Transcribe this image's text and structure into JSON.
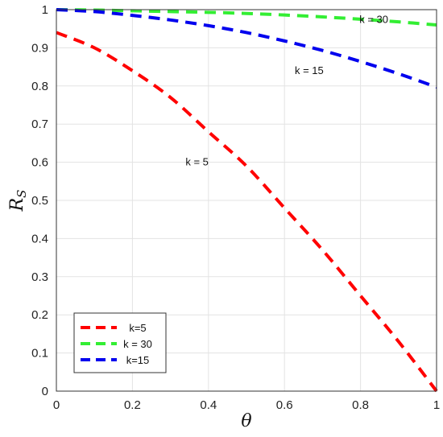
{
  "chart_data": {
    "type": "line",
    "xlabel": "θ",
    "ylabel_main": "R",
    "ylabel_sub": "S",
    "xlim": [
      0,
      1
    ],
    "ylim": [
      0,
      1
    ],
    "xticks": [
      0,
      0.2,
      0.4,
      0.6,
      0.8,
      1
    ],
    "xtick_labels": [
      "0",
      "0.2",
      "0.4",
      "0.6",
      "0.8",
      "1"
    ],
    "yticks": [
      0,
      0.1,
      0.2,
      0.3,
      0.4,
      0.5,
      0.6,
      0.7,
      0.8,
      0.9,
      1
    ],
    "ytick_labels": [
      "0",
      "0.1",
      "0.2",
      "0.3",
      "0.4",
      "0.5",
      "0.6",
      "0.7",
      "0.8",
      "0.9",
      "1"
    ],
    "grid": true,
    "legend_position": "bottom-left",
    "series": [
      {
        "name": "k=5",
        "color": "#ff0000",
        "line_style": "dashed",
        "x": [
          0,
          0.1,
          0.2,
          0.3,
          0.4,
          0.5,
          0.6,
          0.7,
          0.8,
          0.9,
          1.0
        ],
        "y": [
          0.94,
          0.9,
          0.84,
          0.77,
          0.68,
          0.59,
          0.48,
          0.37,
          0.25,
          0.13,
          0.0
        ]
      },
      {
        "name": "k = 30",
        "color": "#33ee33",
        "line_style": "dashed",
        "x": [
          0,
          0.1,
          0.2,
          0.3,
          0.4,
          0.5,
          0.6,
          0.7,
          0.8,
          0.9,
          1.0
        ],
        "y": [
          1.0,
          0.999,
          0.997,
          0.995,
          0.993,
          0.99,
          0.986,
          0.981,
          0.975,
          0.968,
          0.96
        ]
      },
      {
        "name": "k=15",
        "color": "#0000ee",
        "line_style": "dashed",
        "x": [
          0,
          0.1,
          0.2,
          0.3,
          0.4,
          0.5,
          0.6,
          0.7,
          0.8,
          0.9,
          1.0
        ],
        "y": [
          1.0,
          0.995,
          0.985,
          0.973,
          0.958,
          0.94,
          0.918,
          0.893,
          0.864,
          0.832,
          0.797
        ]
      }
    ],
    "annotations": [
      {
        "text": "k = 30",
        "x": 0.835,
        "y": 0.974
      },
      {
        "text": "k = 15",
        "x": 0.665,
        "y": 0.84
      },
      {
        "text": "k = 5",
        "x": 0.37,
        "y": 0.6
      }
    ]
  }
}
